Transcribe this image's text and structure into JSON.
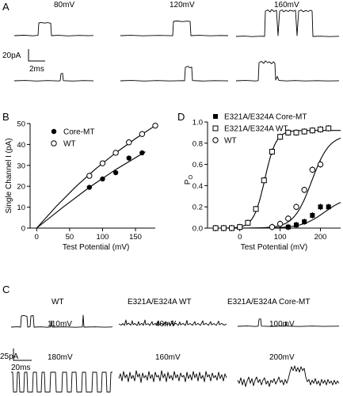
{
  "colors": {
    "ink": "#000000",
    "background": "#ffffff"
  },
  "panel_letters": {
    "a": "A",
    "b": "B",
    "c": "C",
    "d": "D"
  },
  "panel_a": {
    "voltages": [
      "80mV",
      "120mV",
      "160mV"
    ],
    "scale_current": "20pA",
    "scale_time": "2ms"
  },
  "panel_c": {
    "groups": [
      "WT",
      "E321A/E324A WT",
      "E321A/E324A Core-MT"
    ],
    "top_voltages": [
      "110mV",
      "40mV",
      "100mV"
    ],
    "bottom_voltages": [
      "180mV",
      "160mV",
      "200mV"
    ],
    "scale_current": "25pA",
    "scale_time": "20ms"
  },
  "chart_data": [
    {
      "panel": "B",
      "type": "scatter",
      "xlabel": "Test Potential (mV)",
      "ylabel": "Single Channel I (pA)",
      "xlim": [
        -10,
        180
      ],
      "ylim": [
        0,
        50
      ],
      "xticks": [
        0,
        50,
        100,
        150
      ],
      "yticks": [
        0,
        10,
        20,
        30,
        40,
        50
      ],
      "legend_placement": "top-left",
      "series": [
        {
          "name": "Core-MT",
          "marker": "filled-circle",
          "x": [
            80,
            100,
            120,
            140,
            160
          ],
          "y": [
            19.5,
            23.5,
            26.5,
            33.5,
            36
          ]
        },
        {
          "name": "WT",
          "marker": "open-circle",
          "x": [
            80,
            100,
            120,
            140,
            160,
            180
          ],
          "y": [
            25,
            31,
            36,
            41,
            45,
            49
          ]
        }
      ],
      "fit_curves": [
        {
          "series": "WT",
          "x": [
            0,
            30,
            60,
            90,
            120,
            150,
            180
          ],
          "y": [
            0,
            10.5,
            20,
            28.5,
            36,
            42.8,
            49
          ]
        },
        {
          "series": "Core-MT",
          "x": [
            0,
            40,
            80,
            120,
            165
          ],
          "y": [
            0,
            10,
            19.5,
            28,
            36.5
          ]
        }
      ]
    },
    {
      "panel": "D",
      "type": "scatter",
      "xlabel": "Test Potential (mV)",
      "ylabel": "P",
      "ylabel_subscript": "O",
      "xlim": [
        -80,
        250
      ],
      "ylim": [
        0,
        1.0
      ],
      "xticks": [
        0,
        100,
        200
      ],
      "yticks": [
        "0.0",
        "0.2",
        "0.4",
        "0.6",
        "0.8",
        "1.0"
      ],
      "legend_placement": "top-left",
      "series": [
        {
          "name": "E321A/E324A Core-MT",
          "marker": "filled-square",
          "x": [
            120,
            140,
            160,
            180,
            200,
            220
          ],
          "y": [
            0.01,
            0.03,
            0.06,
            0.12,
            0.2,
            0.2
          ]
        },
        {
          "name": "E321A/E324A WT",
          "marker": "open-square",
          "x": [
            -60,
            -40,
            -20,
            0,
            20,
            40,
            60,
            80,
            100,
            120,
            140,
            160,
            180,
            200,
            220
          ],
          "y": [
            0.0,
            0.0,
            0.0,
            0.01,
            0.05,
            0.18,
            0.45,
            0.72,
            0.86,
            0.9,
            0.9,
            0.91,
            0.92,
            0.93,
            0.94
          ]
        },
        {
          "name": "WT",
          "marker": "open-circle",
          "x": [
            80,
            100,
            120,
            140,
            160,
            180,
            200
          ],
          "y": [
            0.01,
            0.04,
            0.09,
            0.2,
            0.36,
            0.55,
            0.6
          ]
        }
      ],
      "fit_curves": [
        {
          "series": "E321A/E324A WT",
          "type": "boltzmann",
          "max": 0.92,
          "v_half": 62,
          "slope": 14
        },
        {
          "series": "WT",
          "type": "boltzmann",
          "max": 0.88,
          "v_half": 178,
          "slope": 22
        },
        {
          "series": "E321A/E324A Core-MT",
          "type": "boltzmann",
          "max": 0.3,
          "v_half": 210,
          "slope": 28
        }
      ]
    }
  ]
}
